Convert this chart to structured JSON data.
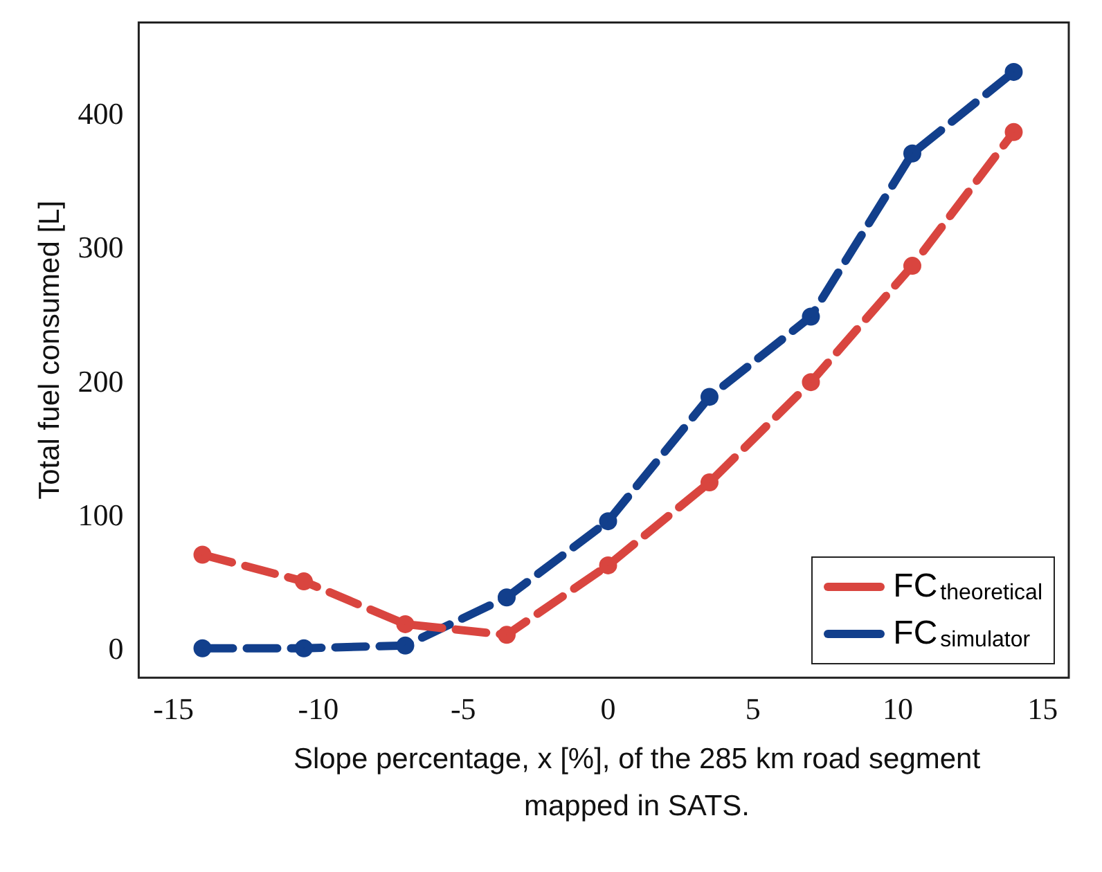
{
  "chart_data": {
    "type": "line",
    "xlabel": "Slope percentage, x [%], of the 285 km road segment mapped in SATS.",
    "ylabel": "Total fuel consumed [L]",
    "x": [
      -14,
      -10.5,
      -7,
      -3.5,
      0,
      3.5,
      7,
      10.5,
      14
    ],
    "series": [
      {
        "name": "FC$_{theoretical}$",
        "color": "#d9453f",
        "values": [
          72,
          52,
          20,
          12,
          64,
          126,
          201,
          288,
          388
        ]
      },
      {
        "name": "FC$_{simulator}$",
        "color": "#123f8c",
        "values": [
          2,
          2,
          4,
          40,
          97,
          190,
          250,
          372,
          433
        ]
      }
    ],
    "xlim": [
      -16.2,
      15.9
    ],
    "xticks": [
      -15,
      -10,
      -5,
      0,
      5,
      10,
      15
    ],
    "ylim": [
      -20,
      470
    ],
    "yticks": [
      0,
      100,
      200,
      300,
      400
    ],
    "grid": false,
    "legend": "bottom right",
    "marker": "circle",
    "line_style": "dashed"
  }
}
